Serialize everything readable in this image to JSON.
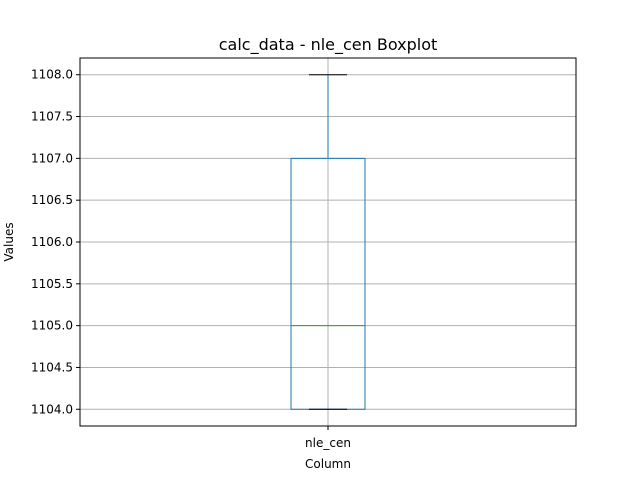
{
  "chart_data": {
    "type": "box",
    "title": "calc_data - nle_cen Boxplot",
    "xlabel": "Column",
    "ylabel": "Values",
    "categories": [
      "nle_cen"
    ],
    "boxes": [
      {
        "category": "nle_cen",
        "whisker_low": 1104.0,
        "q1": 1104.0,
        "median": 1105.0,
        "q3": 1107.0,
        "whisker_high": 1108.0
      }
    ],
    "ylim": [
      1103.8,
      1108.2
    ],
    "yticks": [
      "1104.0",
      "1104.5",
      "1105.0",
      "1105.5",
      "1106.0",
      "1106.5",
      "1107.0",
      "1107.5",
      "1108.0"
    ],
    "grid": true,
    "colors": {
      "box": "#1f77b4",
      "median": "#2ca02c",
      "whisker_cap": "#000000",
      "grid": "#b0b0b0"
    }
  }
}
